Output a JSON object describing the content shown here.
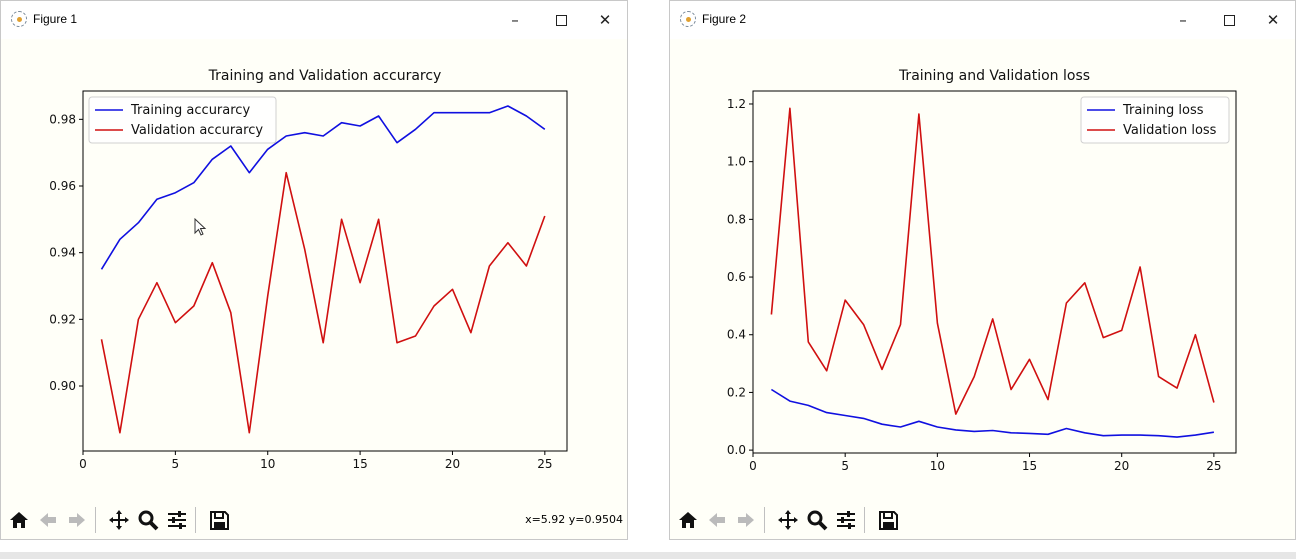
{
  "figures": [
    {
      "window_title": "Figure 1",
      "coords_readout": "x=5.92 y=0.9504",
      "chart_data": {
        "type": "line",
        "title": "Training and Validation accurarcy",
        "xlabel": "",
        "ylabel": "",
        "xlim": [
          0,
          26.2
        ],
        "ylim": [
          0.8805,
          0.9885
        ],
        "xticks": [
          "0",
          "5",
          "10",
          "15",
          "20",
          "25"
        ],
        "yticks": [
          "0.90",
          "0.92",
          "0.94",
          "0.96",
          "0.98"
        ],
        "xtick_values": [
          0,
          5,
          10,
          15,
          20,
          25
        ],
        "ytick_values": [
          0.9,
          0.92,
          0.94,
          0.96,
          0.98
        ],
        "legend_position": "top-left",
        "grid": false,
        "x": [
          1,
          2,
          3,
          4,
          5,
          6,
          7,
          8,
          9,
          10,
          11,
          12,
          13,
          14,
          15,
          16,
          17,
          18,
          19,
          20,
          21,
          22,
          23,
          24,
          25
        ],
        "series": [
          {
            "name": "Training accurarcy",
            "color": "#1010e0",
            "values": [
              0.935,
              0.944,
              0.949,
              0.956,
              0.958,
              0.961,
              0.968,
              0.972,
              0.964,
              0.971,
              0.975,
              0.976,
              0.975,
              0.979,
              0.978,
              0.981,
              0.973,
              0.977,
              0.982,
              0.982,
              0.982,
              0.982,
              0.984,
              0.981,
              0.977
            ]
          },
          {
            "name": "Validation accurarcy",
            "color": "#d01010",
            "values": [
              0.914,
              0.886,
              0.92,
              0.931,
              0.919,
              0.924,
              0.937,
              0.922,
              0.886,
              0.927,
              0.964,
              0.941,
              0.913,
              0.95,
              0.931,
              0.95,
              0.913,
              0.915,
              0.924,
              0.929,
              0.916,
              0.936,
              0.943,
              0.936,
              0.951
            ]
          }
        ]
      }
    },
    {
      "window_title": "Figure 2",
      "coords_readout": "",
      "chart_data": {
        "type": "line",
        "title": "Training and Validation loss",
        "xlabel": "",
        "ylabel": "",
        "xlim": [
          0,
          26.2
        ],
        "ylim": [
          -0.01,
          1.245
        ],
        "xticks": [
          "0",
          "5",
          "10",
          "15",
          "20",
          "25"
        ],
        "yticks": [
          "0.0",
          "0.2",
          "0.4",
          "0.6",
          "0.8",
          "1.0",
          "1.2"
        ],
        "xtick_values": [
          0,
          5,
          10,
          15,
          20,
          25
        ],
        "ytick_values": [
          0.0,
          0.2,
          0.4,
          0.6,
          0.8,
          1.0,
          1.2
        ],
        "legend_position": "top-right",
        "grid": false,
        "x": [
          1,
          2,
          3,
          4,
          5,
          6,
          7,
          8,
          9,
          10,
          11,
          12,
          13,
          14,
          15,
          16,
          17,
          18,
          19,
          20,
          21,
          22,
          23,
          24,
          25
        ],
        "series": [
          {
            "name": "Training loss",
            "color": "#1010e0",
            "values": [
              0.21,
              0.17,
              0.155,
              0.13,
              0.12,
              0.11,
              0.09,
              0.08,
              0.1,
              0.08,
              0.07,
              0.065,
              0.068,
              0.06,
              0.058,
              0.055,
              0.075,
              0.06,
              0.05,
              0.052,
              0.052,
              0.05,
              0.045,
              0.052,
              0.062
            ]
          },
          {
            "name": "Validation loss",
            "color": "#d01010",
            "values": [
              0.47,
              1.185,
              0.375,
              0.275,
              0.52,
              0.435,
              0.28,
              0.435,
              1.165,
              0.44,
              0.125,
              0.255,
              0.455,
              0.21,
              0.315,
              0.175,
              0.51,
              0.58,
              0.39,
              0.415,
              0.635,
              0.255,
              0.215,
              0.4,
              0.165
            ]
          }
        ]
      }
    }
  ],
  "toolbar_icons": [
    "home-icon",
    "back-arrow-icon",
    "forward-arrow-icon",
    "pan-icon",
    "zoom-icon",
    "configure-subplots-icon",
    "save-icon"
  ]
}
